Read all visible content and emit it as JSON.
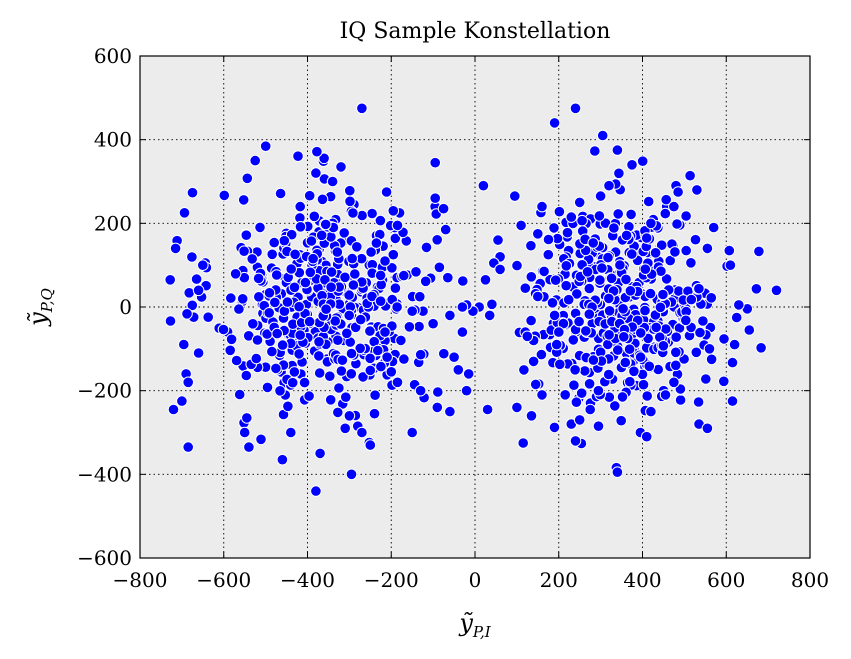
{
  "chart_data": {
    "type": "scatter",
    "title": "IQ Sample Konstellation",
    "xlabel": {
      "base": "ỹ",
      "sub": "P,I"
    },
    "ylabel": {
      "base": "ỹ",
      "sub": "P,Q"
    },
    "xlim": [
      -800,
      800
    ],
    "ylim": [
      -600,
      600
    ],
    "xticks": [
      -800,
      -600,
      -400,
      -200,
      0,
      200,
      400,
      600,
      800
    ],
    "yticks": [
      -600,
      -400,
      -200,
      0,
      200,
      400,
      600
    ],
    "xtick_labels": [
      "−800",
      "−600",
      "−400",
      "−200",
      "0",
      "200",
      "400",
      "600",
      "800"
    ],
    "ytick_labels": [
      "−600",
      "−400",
      "−200",
      "0",
      "200",
      "400",
      "600"
    ],
    "grid": true,
    "background": "#ececec",
    "marker_color": "#0000ff",
    "marker_edge": "#ffffff",
    "series": [
      {
        "clusters": [
          {
            "center": [
              -360,
              20
            ],
            "std": [
              130,
              130
            ],
            "count": 480
          },
          {
            "center": [
              360,
              10
            ],
            "std": [
              110,
              120
            ],
            "count": 440
          }
        ],
        "points": [
          [
            -270,
            475
          ],
          [
            240,
            475
          ],
          [
            190,
            440
          ],
          [
            305,
            410
          ],
          [
            340,
            375
          ],
          [
            375,
            340
          ],
          [
            -525,
            350
          ],
          [
            -95,
            345
          ],
          [
            -320,
            335
          ],
          [
            -380,
            320
          ],
          [
            -340,
            300
          ],
          [
            20,
            290
          ],
          [
            480,
            290
          ],
          [
            530,
            280
          ],
          [
            -715,
            140
          ],
          [
            -728,
            65
          ],
          [
            -650,
            100
          ],
          [
            -660,
            40
          ],
          [
            -720,
            -245
          ],
          [
            -700,
            -225
          ],
          [
            -690,
            -160
          ],
          [
            -685,
            -180
          ],
          [
            -660,
            -110
          ],
          [
            -685,
            -335
          ],
          [
            -545,
            -265
          ],
          [
            -550,
            -300
          ],
          [
            -540,
            -335
          ],
          [
            -460,
            -365
          ],
          [
            -440,
            -300
          ],
          [
            -380,
            -440
          ],
          [
            -370,
            -350
          ],
          [
            -295,
            -400
          ],
          [
            -310,
            -290
          ],
          [
            -300,
            -260
          ],
          [
            -250,
            -330
          ],
          [
            -280,
            -285
          ],
          [
            -270,
            -300
          ],
          [
            -240,
            -255
          ],
          [
            -150,
            -300
          ],
          [
            -130,
            -200
          ],
          [
            -90,
            -240
          ],
          [
            -60,
            -250
          ],
          [
            -20,
            -200
          ],
          [
            -15,
            -160
          ],
          [
            30,
            -245
          ],
          [
            100,
            -240
          ],
          [
            115,
            -325
          ],
          [
            135,
            -260
          ],
          [
            145,
            -185
          ],
          [
            160,
            -210
          ],
          [
            240,
            -320
          ],
          [
            230,
            -280
          ],
          [
            250,
            -270
          ],
          [
            275,
            -245
          ],
          [
            295,
            -285
          ],
          [
            340,
            -395
          ],
          [
            395,
            -300
          ],
          [
            410,
            -310
          ],
          [
            420,
            -250
          ],
          [
            455,
            -210
          ],
          [
            475,
            -180
          ],
          [
            535,
            -280
          ],
          [
            555,
            -290
          ],
          [
            615,
            -225
          ],
          [
            565,
            -125
          ],
          [
            560,
            -100
          ],
          [
            620,
            -90
          ],
          [
            655,
            -55
          ],
          [
            630,
            5
          ],
          [
            625,
            -25
          ],
          [
            720,
            40
          ],
          [
            610,
            100
          ],
          [
            570,
            190
          ],
          [
            555,
            140
          ],
          [
            485,
            275
          ],
          [
            475,
            240
          ],
          [
            420,
            200
          ],
          [
            410,
            165
          ],
          [
            95,
            265
          ],
          [
            110,
            195
          ],
          [
            150,
            175
          ],
          [
            160,
            240
          ],
          [
            55,
            160
          ],
          [
            60,
            120
          ],
          [
            45,
            105
          ],
          [
            60,
            90
          ],
          [
            25,
            65
          ],
          [
            10,
            0
          ],
          [
            35,
            -20
          ],
          [
            -5,
            -10
          ],
          [
            -20,
            5
          ],
          [
            -60,
            -20
          ],
          [
            -30,
            -60
          ],
          [
            -50,
            -120
          ],
          [
            -40,
            -150
          ],
          [
            -95,
            260
          ],
          [
            -70,
            185
          ],
          [
            -75,
            235
          ],
          [
            -85,
            95
          ],
          [
            -65,
            70
          ],
          [
            -30,
            0
          ],
          [
            -100,
            -40
          ],
          [
            -150,
            -10
          ],
          [
            -170,
            75
          ],
          [
            -190,
            45
          ],
          [
            -195,
            125
          ],
          [
            -185,
            195
          ],
          [
            -180,
            225
          ],
          [
            -195,
            230
          ],
          [
            -215,
            110
          ],
          [
            -215,
            -60
          ],
          [
            -210,
            -120
          ],
          [
            -200,
            -155
          ],
          [
            -185,
            -180
          ],
          [
            120,
            45
          ],
          [
            150,
            25
          ],
          [
            165,
            85
          ],
          [
            175,
            125
          ],
          [
            185,
            10
          ],
          [
            190,
            -20
          ],
          [
            200,
            -60
          ],
          [
            195,
            -90
          ],
          [
            140,
            -130
          ],
          [
            140,
            -80
          ],
          [
            120,
            -60
          ],
          [
            125,
            -70
          ],
          [
            230,
            215
          ],
          [
            250,
            250
          ],
          [
            300,
            265
          ],
          [
            320,
            290
          ]
        ]
      }
    ]
  }
}
